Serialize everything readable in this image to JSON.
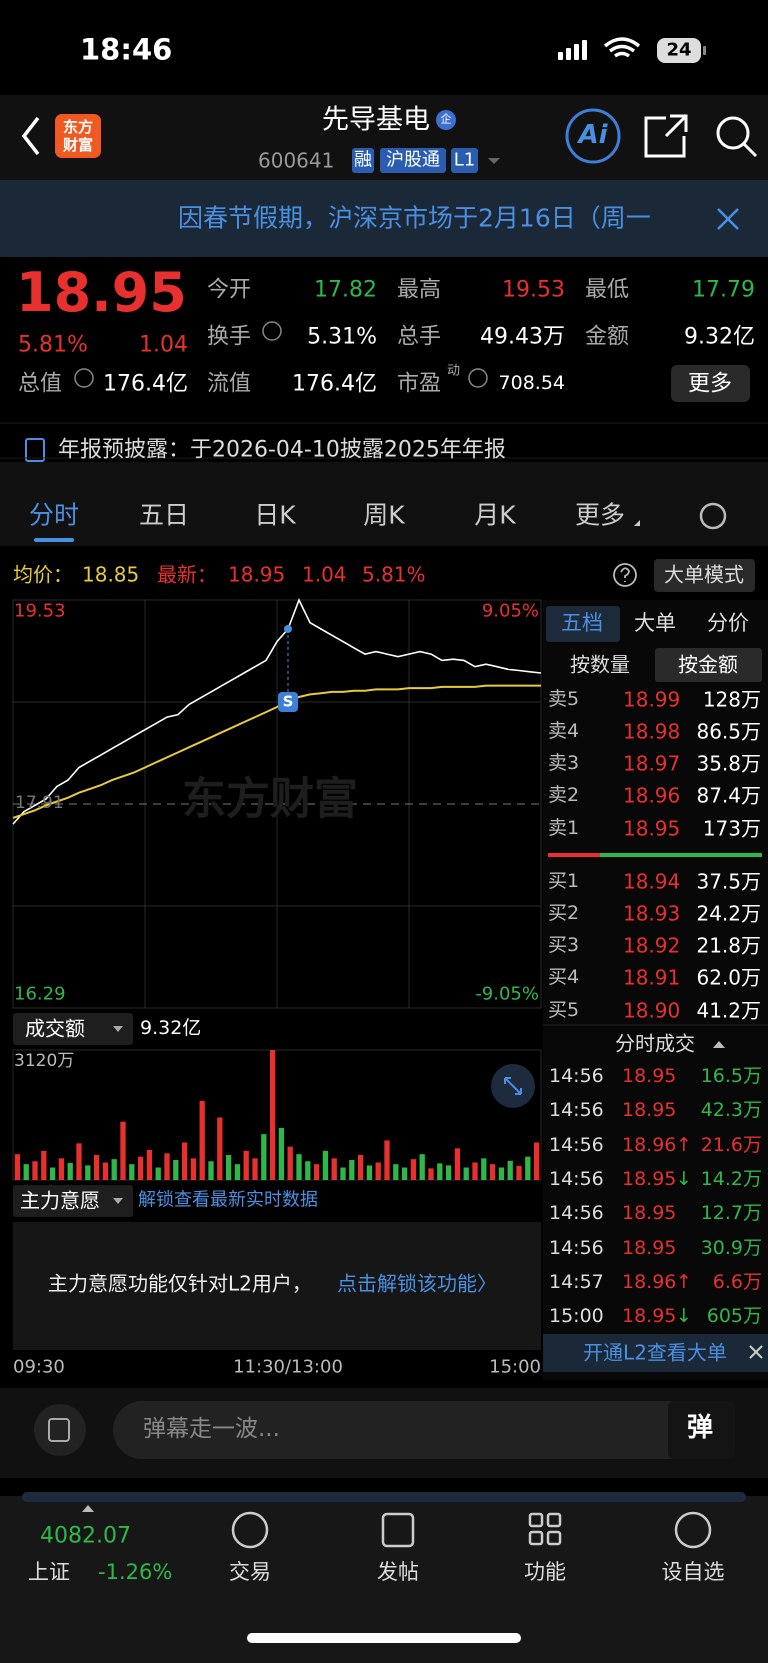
{
  "status_bar": {
    "time": "18:46",
    "battery": "24"
  },
  "header": {
    "logo": "东方财富",
    "name": "先导基电",
    "badge": "企",
    "code": "600641",
    "tags": [
      "融",
      "沪股通",
      "L1"
    ],
    "ai": "Ai"
  },
  "notice": {
    "text": "因春节假期，沪深京市场于2月16日（周一"
  },
  "quote": {
    "price": "18.95",
    "change_pct": "5.81%",
    "change": "1.04",
    "pe_sup": "动",
    "more": "更多",
    "fields": [
      {
        "label": "今开",
        "value": "17.82",
        "color": "#2fb84a"
      },
      {
        "label": "最高",
        "value": "19.53",
        "color": "#e8312f"
      },
      {
        "label": "最低",
        "value": "17.79",
        "color": "#2fb84a"
      },
      {
        "label": "换手",
        "value": "5.31%",
        "color": "#ffffff"
      },
      {
        "label": "总手",
        "value": "49.43万",
        "color": "#ffffff"
      },
      {
        "label": "金额",
        "value": "9.32亿",
        "color": "#ffffff"
      },
      {
        "label": "总值",
        "value": "176.4亿",
        "color": "#ffffff"
      },
      {
        "label": "流值",
        "value": "176.4亿",
        "color": "#ffffff"
      },
      {
        "label": "市盈",
        "value": "708.54",
        "color": "#ffffff"
      }
    ]
  },
  "announcement": "年报预披露：于2026-04-10披露2025年年报",
  "tabs": [
    "分时",
    "五日",
    "日K",
    "周K",
    "月K",
    "更多"
  ],
  "active_tab": 0,
  "chart_header": {
    "avg_label": "均价：",
    "avg": "18.85",
    "latest_label": "最新：",
    "latest": "18.95",
    "change": "1.04",
    "change_pct": "5.81%",
    "mode": "大单模式"
  },
  "intraday": {
    "ylim": [
      16.29,
      19.53
    ],
    "prev_close": 17.91,
    "labels": {
      "top": "19.53",
      "bottom": "16.29",
      "top_pct": "9.05%",
      "bottom_pct": "-9.05%",
      "prev_close": "17.91"
    },
    "watermark": "东方财富",
    "signal_label": "S",
    "price_color": "#ffffff",
    "avg_color": "#e6cc3a",
    "prices": [
      17.75,
      17.85,
      17.9,
      17.95,
      18.05,
      18.1,
      18.2,
      18.25,
      18.3,
      18.35,
      18.4,
      18.45,
      18.5,
      18.55,
      18.6,
      18.62,
      18.7,
      18.75,
      18.8,
      18.85,
      18.9,
      18.95,
      19.0,
      19.05,
      19.2,
      19.3,
      19.53,
      19.35,
      19.3,
      19.25,
      19.2,
      19.15,
      19.1,
      19.12,
      19.1,
      19.08,
      19.1,
      19.12,
      19.1,
      19.05,
      19.06,
      19.05,
      19.0,
      19.02,
      19.0,
      18.98,
      18.97,
      18.96,
      18.95
    ],
    "avg": [
      17.8,
      17.83,
      17.86,
      17.9,
      17.93,
      17.96,
      18.0,
      18.03,
      18.06,
      18.1,
      18.13,
      18.16,
      18.2,
      18.24,
      18.28,
      18.32,
      18.36,
      18.4,
      18.44,
      18.48,
      18.52,
      18.56,
      18.6,
      18.64,
      18.68,
      18.72,
      18.76,
      18.78,
      18.79,
      18.8,
      18.8,
      18.81,
      18.81,
      18.82,
      18.82,
      18.82,
      18.83,
      18.83,
      18.83,
      18.84,
      18.84,
      18.84,
      18.84,
      18.85,
      18.85,
      18.85,
      18.85,
      18.85,
      18.85
    ],
    "volume": {
      "label": "成交额",
      "total": "9.32亿",
      "max_label": "3120万",
      "ylim": [
        0,
        3120
      ],
      "up_color": "#e8312f",
      "down_color": "#2fb84a",
      "values": [
        620,
        380,
        450,
        700,
        300,
        520,
        410,
        880,
        350,
        600,
        420,
        500,
        1400,
        380,
        560,
        720,
        300,
        640,
        480,
        900,
        520,
        1900,
        450,
        1500,
        600,
        380,
        700,
        520,
        1100,
        3120,
        1250,
        800,
        620,
        450,
        380,
        700,
        520,
        300,
        480,
        600,
        350,
        420,
        950,
        380,
        300,
        500,
        620,
        280,
        400,
        350,
        760,
        300,
        420,
        520,
        380,
        300,
        460,
        340,
        560,
        900
      ],
      "up": [
        true,
        false,
        true,
        true,
        false,
        true,
        false,
        true,
        false,
        true,
        true,
        false,
        true,
        false,
        true,
        true,
        false,
        true,
        false,
        true,
        true,
        true,
        false,
        true,
        false,
        false,
        true,
        true,
        false,
        true,
        false,
        true,
        false,
        false,
        true,
        false,
        true,
        false,
        false,
        true,
        false,
        true,
        true,
        false,
        false,
        true,
        false,
        true,
        false,
        false,
        true,
        false,
        true,
        false,
        true,
        false,
        false,
        true,
        false,
        true
      ]
    },
    "time_axis": [
      "09:30",
      "11:30/13:00",
      "15:00"
    ]
  },
  "order_book": {
    "tabs": [
      "五档",
      "大单",
      "分价"
    ],
    "sort": [
      "按数量",
      "按金额"
    ],
    "asks": [
      {
        "label": "卖5",
        "price": "18.99",
        "amount": "128万"
      },
      {
        "label": "卖4",
        "price": "18.98",
        "amount": "86.5万"
      },
      {
        "label": "卖3",
        "price": "18.97",
        "amount": "35.8万"
      },
      {
        "label": "卖2",
        "price": "18.96",
        "amount": "87.4万"
      },
      {
        "label": "卖1",
        "price": "18.95",
        "amount": "173万"
      }
    ],
    "bids": [
      {
        "label": "买1",
        "price": "18.94",
        "amount": "37.5万"
      },
      {
        "label": "买2",
        "price": "18.93",
        "amount": "24.2万"
      },
      {
        "label": "买3",
        "price": "18.92",
        "amount": "21.8万"
      },
      {
        "label": "买4",
        "price": "18.91",
        "amount": "62.0万"
      },
      {
        "label": "买5",
        "price": "18.90",
        "amount": "41.2万"
      }
    ]
  },
  "trades": {
    "title": "分时成交",
    "promo": "开通L2查看大单",
    "rows": [
      {
        "time": "14:56",
        "price": "18.95",
        "amount": "16.5万",
        "color": "#2fb84a"
      },
      {
        "time": "14:56",
        "price": "18.95",
        "amount": "42.3万",
        "color": "#2fb84a"
      },
      {
        "time": "14:56",
        "price": "18.96",
        "dir": "↑",
        "amount": "21.6万",
        "color": "#e8312f"
      },
      {
        "time": "14:56",
        "price": "18.95",
        "dir": "↓",
        "amount": "14.2万",
        "color": "#2fb84a"
      },
      {
        "time": "14:56",
        "price": "18.95",
        "amount": "12.7万",
        "color": "#2fb84a"
      },
      {
        "time": "14:56",
        "price": "18.95",
        "amount": "30.9万",
        "color": "#2fb84a"
      },
      {
        "time": "14:57",
        "price": "18.96",
        "dir": "↑",
        "amount": "6.6万",
        "color": "#e8312f"
      },
      {
        "time": "15:00",
        "price": "18.95",
        "dir": "↓",
        "amount": "605万",
        "color": "#2fb84a"
      }
    ]
  },
  "main_force": {
    "title": "主力意愿",
    "unlock": "解锁查看最新实时数据",
    "message": "主力意愿功能仅针对L2用户，",
    "action": "点击解锁该功能〉"
  },
  "comment": {
    "placeholder": "弹幕走一波...",
    "button": "弹"
  },
  "bottom_bar": {
    "index_value": "4082.07",
    "index_name": "上证",
    "index_change": "-1.26%",
    "items": [
      "交易",
      "发帖",
      "功能",
      "设自选"
    ]
  }
}
